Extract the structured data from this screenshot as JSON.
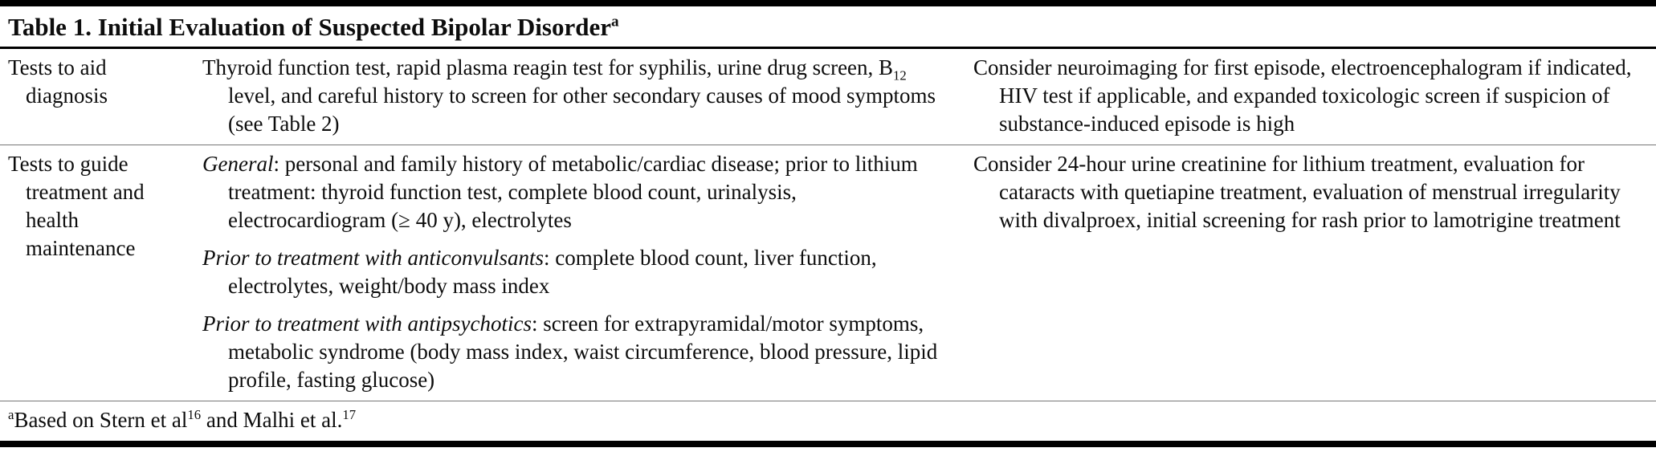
{
  "table": {
    "title": {
      "text": "Table 1. Initial Evaluation of Suspected Bipolar Disorder",
      "sup": "a"
    },
    "rows": {
      "r1": {
        "label": "Tests to aid diagnosis",
        "col2": {
          "pre": "Thyroid function test, rapid plasma reagin test for syphilis, urine drug screen, B",
          "sub": "12",
          "post": " level, and careful history to screen for other secondary causes of mood symptoms (see Table 2)"
        },
        "col3": "Consider neuroimaging for first episode, electroencephalogram if indicated, HIV test if applicable, and expanded toxicologic screen if suspicion of substance-induced episode is high"
      },
      "r2": {
        "label": "Tests to guide treatment and health maintenance",
        "p1": {
          "lead": "General",
          "text": ": personal and family history of metabolic/cardiac disease; prior to lithium treatment: thyroid function test, complete blood count, urinalysis, electrocardiogram (≥ 40 y), electrolytes"
        },
        "p2": {
          "lead": "Prior to treatment with anticonvulsants",
          "text": ": complete blood count, liver function, electrolytes, weight/body mass index"
        },
        "p3": {
          "lead": "Prior to treatment with antipsychotics",
          "text": ": screen for extrapyramidal/motor symptoms, metabolic syndrome (body mass index, waist circumference, blood pressure, lipid profile, fasting glucose)"
        },
        "col3": "Consider 24-hour urine creatinine for lithium treatment, evaluation for cataracts with quetiapine treatment, evaluation of menstrual irregularity with divalproex, initial screening for rash prior to lamotrigine treatment"
      }
    },
    "footnote": {
      "sup": "a",
      "t1": "Based on Stern et al",
      "r1": "16",
      "t2": " and Malhi et al.",
      "r2": "17"
    },
    "colors": {
      "text": "#0d0d0d",
      "rule_thick": "#000000",
      "rule_thin": "#777777",
      "background": "#ffffff"
    }
  }
}
